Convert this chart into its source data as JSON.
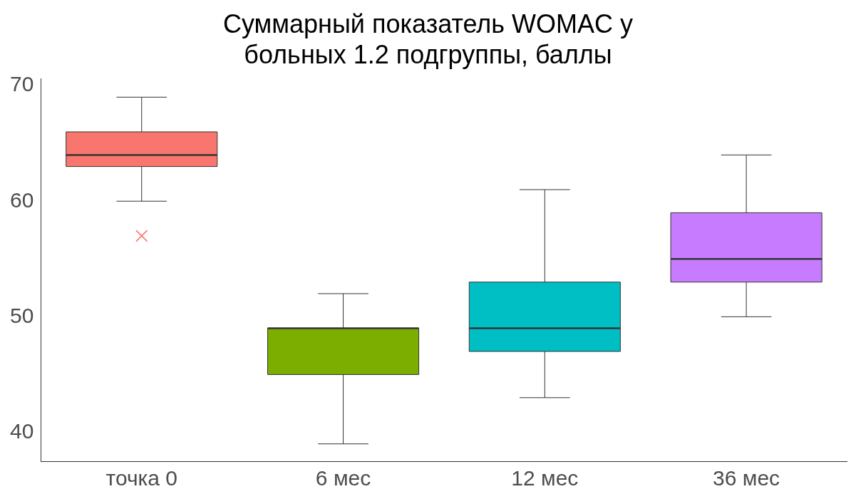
{
  "chart_data": {
    "type": "box",
    "title": "Суммарный показатель WOMAC у\nбольных 1.2 подгруппы, баллы",
    "categories": [
      "точка 0",
      "6 мес",
      "12 мес",
      "36 мес"
    ],
    "colors": [
      "#f8766d",
      "#7cae00",
      "#00bfc4",
      "#c77cff"
    ],
    "boxes": [
      {
        "low": 60,
        "q1": 63,
        "median": 64,
        "q3": 66,
        "high": 69,
        "outliers": [
          57
        ]
      },
      {
        "low": 39,
        "q1": 45,
        "median": 49,
        "q3": 49,
        "high": 52
      },
      {
        "low": 43,
        "q1": 47,
        "median": 49,
        "q3": 53,
        "high": 61
      },
      {
        "low": 50,
        "q1": 53,
        "median": 55,
        "q3": 59,
        "high": 64
      }
    ],
    "ylim": [
      37.5,
      70.6
    ],
    "yticks": [
      40,
      50,
      60,
      70
    ],
    "grid": false,
    "legend": false
  }
}
